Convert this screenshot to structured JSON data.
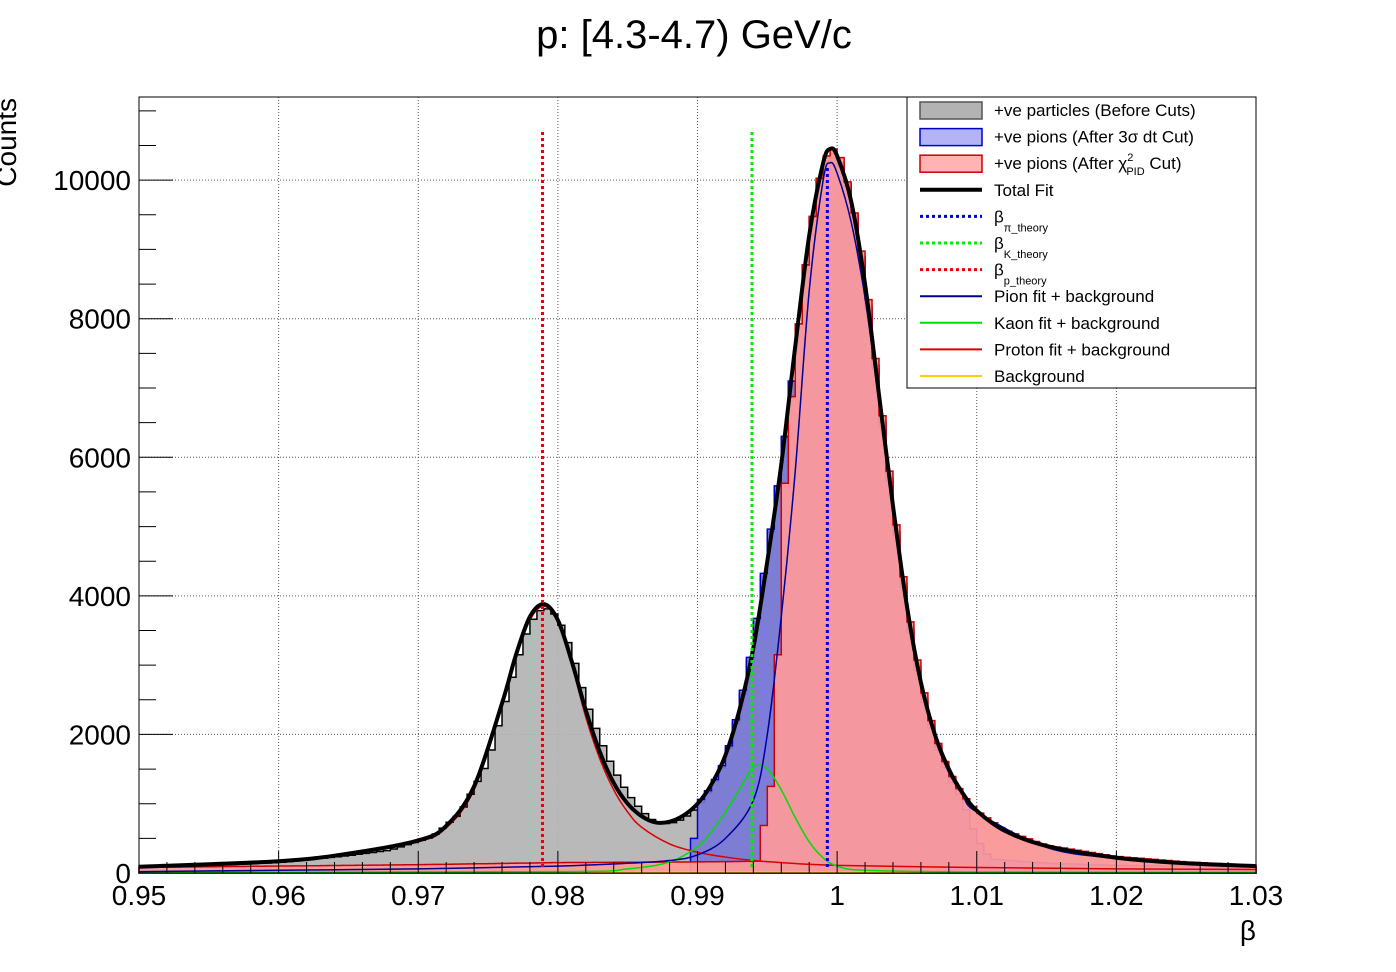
{
  "chart_data": {
    "type": "histogram",
    "title": "p: [4.3-4.7) GeV/c",
    "xlabel": "β",
    "ylabel": "Counts",
    "xlim": [
      0.95,
      1.03
    ],
    "ylim": [
      0,
      11200
    ],
    "grid": true,
    "legend_position": "top-right",
    "x_ticks": [
      {
        "value": 0.95,
        "label": "0.95"
      },
      {
        "value": 0.96,
        "label": "0.96"
      },
      {
        "value": 0.97,
        "label": "0.97"
      },
      {
        "value": 0.98,
        "label": "0.98"
      },
      {
        "value": 0.99,
        "label": "0.99"
      },
      {
        "value": 1.0,
        "label": "1"
      },
      {
        "value": 1.01,
        "label": "1.01"
      },
      {
        "value": 1.02,
        "label": "1.02"
      },
      {
        "value": 1.03,
        "label": "1.03"
      }
    ],
    "y_ticks": [
      {
        "value": 0,
        "label": "0"
      },
      {
        "value": 2000,
        "label": "2000"
      },
      {
        "value": 4000,
        "label": "4000"
      },
      {
        "value": 6000,
        "label": "6000"
      },
      {
        "value": 8000,
        "label": "8000"
      },
      {
        "value": 10000,
        "label": "10000"
      }
    ],
    "histograms": [
      {
        "name": "+ve particles (Before Cuts)",
        "fill": "#b3b3b3",
        "line": "#000000",
        "points": [
          [
            0.95,
            100
          ],
          [
            0.955,
            110
          ],
          [
            0.96,
            150
          ],
          [
            0.965,
            250
          ],
          [
            0.968,
            330
          ],
          [
            0.971,
            520
          ],
          [
            0.973,
            860
          ],
          [
            0.975,
            1600
          ],
          [
            0.976,
            2300
          ],
          [
            0.977,
            3000
          ],
          [
            0.978,
            3600
          ],
          [
            0.979,
            3850
          ],
          [
            0.98,
            3700
          ],
          [
            0.981,
            3200
          ],
          [
            0.982,
            2500
          ],
          [
            0.983,
            1950
          ],
          [
            0.984,
            1500
          ],
          [
            0.985,
            1150
          ],
          [
            0.986,
            900
          ],
          [
            0.987,
            730
          ],
          [
            0.988,
            710
          ],
          [
            0.989,
            780
          ],
          [
            0.99,
            950
          ],
          [
            0.991,
            1220
          ],
          [
            0.992,
            1620
          ],
          [
            0.993,
            2350
          ],
          [
            0.994,
            3300
          ],
          [
            0.995,
            4600
          ],
          [
            0.996,
            5900
          ],
          [
            0.997,
            7500
          ],
          [
            0.998,
            9200
          ],
          [
            0.999,
            10300
          ],
          [
            1.0,
            10400
          ],
          [
            1.001,
            9800
          ],
          [
            1.002,
            8600
          ],
          [
            1.003,
            6900
          ],
          [
            1.004,
            5300
          ],
          [
            1.005,
            3800
          ],
          [
            1.006,
            2700
          ],
          [
            1.007,
            1950
          ],
          [
            1.008,
            1450
          ],
          [
            1.009,
            1110
          ],
          [
            1.01,
            880
          ],
          [
            1.012,
            600
          ],
          [
            1.015,
            380
          ],
          [
            1.02,
            230
          ],
          [
            1.025,
            150
          ],
          [
            1.03,
            100
          ]
        ]
      },
      {
        "name": "+ve pions (After 3σ dt Cut)",
        "fill": "#7777d6",
        "line": "#0000cc",
        "points": [
          [
            0.9895,
            0
          ],
          [
            0.99,
            1000
          ],
          [
            0.991,
            1250
          ],
          [
            0.992,
            1650
          ],
          [
            0.993,
            2400
          ],
          [
            0.994,
            3350
          ],
          [
            0.995,
            4650
          ],
          [
            0.996,
            5900
          ],
          [
            0.997,
            7500
          ],
          [
            0.998,
            9200
          ],
          [
            0.999,
            10250
          ],
          [
            1.0,
            10350
          ],
          [
            1.001,
            9750
          ],
          [
            1.002,
            8550
          ],
          [
            1.003,
            6850
          ],
          [
            1.004,
            5250
          ],
          [
            1.005,
            3750
          ],
          [
            1.006,
            2650
          ],
          [
            1.007,
            1900
          ],
          [
            1.008,
            1400
          ],
          [
            1.009,
            1050
          ],
          [
            1.01,
            500
          ],
          [
            1.011,
            200
          ],
          [
            1.015,
            140
          ],
          [
            1.02,
            110
          ],
          [
            1.025,
            100
          ],
          [
            1.03,
            90
          ]
        ]
      },
      {
        "name": "+ve pions (After χ²PID Cut)",
        "fill": "#ff9999",
        "line": "#cc0000",
        "points": [
          [
            0.95,
            80
          ],
          [
            0.96,
            100
          ],
          [
            0.97,
            120
          ],
          [
            0.98,
            150
          ],
          [
            0.99,
            160
          ],
          [
            0.9945,
            170
          ],
          [
            0.995,
            1200
          ],
          [
            0.9955,
            1300
          ],
          [
            0.996,
            5000
          ],
          [
            0.997,
            7500
          ],
          [
            0.998,
            9200
          ],
          [
            0.999,
            10300
          ],
          [
            1.0,
            10500
          ],
          [
            1.001,
            9800
          ],
          [
            1.002,
            8700
          ],
          [
            1.003,
            7000
          ],
          [
            1.004,
            5400
          ],
          [
            1.005,
            3900
          ],
          [
            1.006,
            2800
          ],
          [
            1.007,
            2000
          ],
          [
            1.008,
            1480
          ],
          [
            1.009,
            1130
          ],
          [
            1.01,
            900
          ],
          [
            1.012,
            620
          ],
          [
            1.015,
            400
          ],
          [
            1.02,
            240
          ],
          [
            1.025,
            160
          ],
          [
            1.03,
            110
          ]
        ]
      }
    ],
    "curves": [
      {
        "name": "Total Fit",
        "color": "#000000",
        "style": "solid",
        "width": 4,
        "points": [
          [
            0.95,
            90
          ],
          [
            0.96,
            170
          ],
          [
            0.965,
            280
          ],
          [
            0.97,
            470
          ],
          [
            0.972,
            680
          ],
          [
            0.974,
            1250
          ],
          [
            0.976,
            2450
          ],
          [
            0.977,
            3150
          ],
          [
            0.978,
            3700
          ],
          [
            0.979,
            3880
          ],
          [
            0.98,
            3650
          ],
          [
            0.981,
            3050
          ],
          [
            0.982,
            2350
          ],
          [
            0.983,
            1750
          ],
          [
            0.984,
            1300
          ],
          [
            0.985,
            1000
          ],
          [
            0.986,
            820
          ],
          [
            0.987,
            730
          ],
          [
            0.988,
            740
          ],
          [
            0.989,
            830
          ],
          [
            0.99,
            1000
          ],
          [
            0.991,
            1280
          ],
          [
            0.992,
            1700
          ],
          [
            0.993,
            2350
          ],
          [
            0.994,
            3250
          ],
          [
            0.995,
            4500
          ],
          [
            0.996,
            5900
          ],
          [
            0.997,
            7600
          ],
          [
            0.998,
            9200
          ],
          [
            0.999,
            10250
          ],
          [
            0.9995,
            10450
          ],
          [
            1.0,
            10350
          ],
          [
            1.001,
            9700
          ],
          [
            1.002,
            8500
          ],
          [
            1.003,
            6900
          ],
          [
            1.004,
            5300
          ],
          [
            1.005,
            3850
          ],
          [
            1.006,
            2750
          ],
          [
            1.007,
            2000
          ],
          [
            1.008,
            1500
          ],
          [
            1.009,
            1150
          ],
          [
            1.01,
            900
          ],
          [
            1.012,
            610
          ],
          [
            1.015,
            390
          ],
          [
            1.02,
            220
          ],
          [
            1.025,
            140
          ],
          [
            1.03,
            100
          ]
        ]
      },
      {
        "name": "Pion fit + background",
        "color": "#000099",
        "style": "solid",
        "width": 1.5,
        "points": [
          [
            0.95,
            20
          ],
          [
            0.96,
            40
          ],
          [
            0.97,
            60
          ],
          [
            0.98,
            100
          ],
          [
            0.985,
            140
          ],
          [
            0.988,
            180
          ],
          [
            0.99,
            260
          ],
          [
            0.992,
            500
          ],
          [
            0.994,
            1050
          ],
          [
            0.995,
            2000
          ],
          [
            0.996,
            3700
          ],
          [
            0.997,
            5800
          ],
          [
            0.998,
            8400
          ],
          [
            0.999,
            10000
          ],
          [
            0.9995,
            10250
          ],
          [
            1.0,
            10100
          ],
          [
            1.001,
            9400
          ],
          [
            1.002,
            8300
          ],
          [
            1.003,
            6800
          ],
          [
            1.004,
            5250
          ],
          [
            1.005,
            3800
          ],
          [
            1.006,
            2750
          ],
          [
            1.007,
            1950
          ],
          [
            1.008,
            1450
          ],
          [
            1.009,
            1120
          ],
          [
            1.01,
            880
          ],
          [
            1.015,
            370
          ],
          [
            1.02,
            210
          ],
          [
            1.025,
            130
          ],
          [
            1.03,
            90
          ]
        ]
      },
      {
        "name": "Kaon fit + background",
        "color": "#00dd00",
        "style": "solid",
        "width": 1.5,
        "points": [
          [
            0.95,
            10
          ],
          [
            0.98,
            20
          ],
          [
            0.985,
            60
          ],
          [
            0.988,
            160
          ],
          [
            0.99,
            380
          ],
          [
            0.991,
            600
          ],
          [
            0.992,
            880
          ],
          [
            0.993,
            1200
          ],
          [
            0.994,
            1530
          ],
          [
            0.995,
            1500
          ],
          [
            0.996,
            1200
          ],
          [
            0.997,
            800
          ],
          [
            0.998,
            450
          ],
          [
            0.999,
            220
          ],
          [
            1.0,
            100
          ],
          [
            1.002,
            40
          ],
          [
            1.01,
            15
          ],
          [
            1.03,
            10
          ]
        ]
      },
      {
        "name": "Proton fit + background",
        "color": "#dd0000",
        "style": "solid",
        "width": 1.5,
        "points": [
          [
            0.95,
            80
          ],
          [
            0.96,
            160
          ],
          [
            0.965,
            270
          ],
          [
            0.97,
            450
          ],
          [
            0.972,
            650
          ],
          [
            0.974,
            1200
          ],
          [
            0.976,
            2400
          ],
          [
            0.977,
            3100
          ],
          [
            0.978,
            3650
          ],
          [
            0.979,
            3850
          ],
          [
            0.98,
            3620
          ],
          [
            0.981,
            3000
          ],
          [
            0.982,
            2250
          ],
          [
            0.983,
            1650
          ],
          [
            0.984,
            1200
          ],
          [
            0.985,
            880
          ],
          [
            0.986,
            660
          ],
          [
            0.988,
            420
          ],
          [
            0.99,
            300
          ],
          [
            0.992,
            230
          ],
          [
            0.994,
            180
          ],
          [
            0.996,
            150
          ],
          [
            1.0,
            110
          ],
          [
            1.01,
            80
          ],
          [
            1.02,
            60
          ],
          [
            1.03,
            50
          ]
        ]
      },
      {
        "name": "Background",
        "color": "#ffcc00",
        "style": "solid",
        "width": 1.5,
        "points": [
          [
            0.95,
            15
          ],
          [
            0.99,
            15
          ],
          [
            1.03,
            15
          ]
        ]
      }
    ],
    "vlines": [
      {
        "name": "β_π_theory",
        "x": 0.9993,
        "y_top": 10200,
        "color": "#0000cc"
      },
      {
        "name": "β_K_theory",
        "x": 0.9939,
        "y_top": 10700,
        "color": "#00ee00"
      },
      {
        "name": "β_p_theory",
        "x": 0.9789,
        "y_top": 10700,
        "color": "#ee0000"
      }
    ],
    "legend": [
      {
        "kind": "box",
        "fill": "#b3b3b3",
        "border": "#555555",
        "label": "+ve particles (Before Cuts)"
      },
      {
        "kind": "box",
        "fill": "#b3b3f5",
        "border": "#0000cc",
        "label": "+ve pions (After 3σ dt Cut)"
      },
      {
        "kind": "box",
        "fill": "#ffb3b3",
        "border": "#cc0000",
        "label_pre": "+ve pions (After χ",
        "label_sup": "2",
        "label_sub": "PID",
        "label_post": " Cut)"
      },
      {
        "kind": "line",
        "color": "#000000",
        "width": 4,
        "dash": "",
        "label": "Total Fit"
      },
      {
        "kind": "line",
        "color": "#0000cc",
        "width": 3,
        "dash": "3,3",
        "label_main": "β",
        "label_sub": "π_theory"
      },
      {
        "kind": "line",
        "color": "#00ee00",
        "width": 3,
        "dash": "3,3",
        "label_main": "β",
        "label_sub": "K_theory"
      },
      {
        "kind": "line",
        "color": "#ee0000",
        "width": 3,
        "dash": "3,3",
        "label_main": "β",
        "label_sub": "p_theory"
      },
      {
        "kind": "line",
        "color": "#000099",
        "width": 2,
        "dash": "",
        "label": "Pion fit + background"
      },
      {
        "kind": "line",
        "color": "#00dd00",
        "width": 2,
        "dash": "",
        "label": "Kaon fit + background"
      },
      {
        "kind": "line",
        "color": "#dd0000",
        "width": 2,
        "dash": "",
        "label": "Proton fit + background"
      },
      {
        "kind": "line",
        "color": "#ffcc00",
        "width": 2,
        "dash": "",
        "label": "Background"
      }
    ]
  }
}
